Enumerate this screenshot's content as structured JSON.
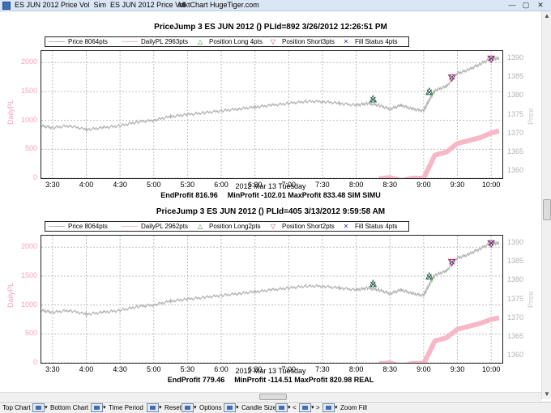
{
  "window": {
    "title": "ES JUN 2012 Price Vol  Sim  ES JUN 2012 Price Vol",
    "center_title": "MktChart HugeTiger.com",
    "minimize": "—",
    "maximize": "▢",
    "close": "✕"
  },
  "charts": [
    {
      "title": "PriceJump 3 ES JUN 2012 () PLId=892 3/26/2012 12:26:51 PM",
      "legend": [
        "Price 8064pts",
        "DailyPL 2963pts",
        "Position Long 4pts",
        "Position Short3pts",
        "Fill Status 4pts"
      ],
      "date_label": "2012 Mar 13 Tuesday",
      "end_profit": "EndProfit 816.96",
      "min_max": "MinProfit -102.01 MaxProfit 833.48 SIM SIMU"
    },
    {
      "title": "PriceJump 3 ES JUN 2012 () PLId=405 3/13/2012 9:59:58 AM",
      "legend": [
        "Price 8064pts",
        "DailyPL 2962pts",
        "Position Long2pts",
        "Position Short2pts",
        "Fill Status 4pts"
      ],
      "date_label": "2012 Mar 13 Tuesday",
      "end_profit": "EndProfit 779.46",
      "min_max": "MinProfit -114.51 MaxProfit 820.98 REAL"
    }
  ],
  "axes": {
    "left_label": "DailyPL",
    "right_label": "Price",
    "left_ticks": [
      "0",
      "500",
      "1000",
      "1500",
      "2000"
    ],
    "right_ticks": [
      "1360",
      "1365",
      "1370",
      "1375",
      "1380",
      "1385",
      "1390"
    ],
    "x_ticks": [
      "3:30",
      "4:00",
      "4:30",
      "5:00",
      "5:30",
      "6:00",
      "6:30",
      "7:00",
      "7:30",
      "8:00",
      "8:30",
      "9:00",
      "9:30",
      "10:00"
    ]
  },
  "chart_data": [
    {
      "type": "line",
      "x": [
        "3:20",
        "3:30",
        "3:45",
        "4:00",
        "4:15",
        "4:30",
        "4:45",
        "5:00",
        "5:15",
        "5:30",
        "5:45",
        "6:00",
        "6:15",
        "6:30",
        "6:45",
        "7:00",
        "7:15",
        "7:30",
        "7:45",
        "8:00",
        "8:10",
        "8:20",
        "8:30",
        "8:40",
        "8:50",
        "9:00",
        "9:05",
        "9:10",
        "9:20",
        "9:30",
        "9:40",
        "9:50",
        "10:00",
        "10:07"
      ],
      "series": [
        {
          "name": "Price 8064pts",
          "axis": "right",
          "values": [
            1372,
            1371.5,
            1372,
            1371,
            1371.5,
            1372,
            1373,
            1373.5,
            1374.5,
            1375,
            1375.5,
            1376,
            1376.5,
            1377,
            1377.5,
            1378,
            1378.5,
            1378.5,
            1378,
            1377.5,
            1378,
            1377.5,
            1376.5,
            1377.5,
            1376.5,
            1376,
            1379,
            1381.5,
            1382.5,
            1386,
            1387,
            1388.5,
            1390,
            1390
          ]
        },
        {
          "name": "DailyPL 2963pts",
          "axis": "left",
          "values": [
            null,
            null,
            null,
            null,
            null,
            null,
            null,
            null,
            null,
            null,
            null,
            null,
            null,
            null,
            null,
            null,
            null,
            null,
            null,
            null,
            null,
            -10,
            10,
            -40,
            0,
            0,
            200,
            400,
            450,
            600,
            650,
            700,
            780,
            817
          ]
        }
      ],
      "markers": {
        "long": [
          [
            "8:15",
            1379
          ],
          [
            "9:05",
            1381
          ]
        ],
        "short": [
          [
            "9:25",
            1385
          ],
          [
            "10:00",
            1390
          ]
        ],
        "fill": [
          [
            "8:15",
            1379
          ],
          [
            "9:05",
            1381
          ],
          [
            "9:25",
            1385
          ],
          [
            "10:00",
            1390
          ]
        ]
      },
      "ylim_left": [
        0,
        2200
      ],
      "ylim_right": [
        1358,
        1392
      ]
    },
    {
      "type": "line",
      "x": [
        "3:20",
        "3:30",
        "3:45",
        "4:00",
        "4:15",
        "4:30",
        "4:45",
        "5:00",
        "5:15",
        "5:30",
        "5:45",
        "6:00",
        "6:15",
        "6:30",
        "6:45",
        "7:00",
        "7:15",
        "7:30",
        "7:45",
        "8:00",
        "8:10",
        "8:20",
        "8:30",
        "8:40",
        "8:50",
        "9:00",
        "9:05",
        "9:10",
        "9:20",
        "9:30",
        "9:40",
        "9:50",
        "10:00",
        "10:07"
      ],
      "series": [
        {
          "name": "Price 8064pts",
          "axis": "right",
          "values": [
            1372,
            1371.5,
            1372,
            1371,
            1371.5,
            1372,
            1373,
            1373.5,
            1374.5,
            1375,
            1375.5,
            1376,
            1376.5,
            1377,
            1377.5,
            1378,
            1378.5,
            1378.5,
            1378,
            1377.5,
            1378,
            1377.5,
            1376.5,
            1377.5,
            1376.5,
            1376,
            1379,
            1381.5,
            1382.5,
            1386,
            1387,
            1388.5,
            1390,
            1390
          ]
        },
        {
          "name": "DailyPL 2962pts",
          "axis": "left",
          "values": [
            null,
            null,
            null,
            null,
            null,
            null,
            null,
            null,
            null,
            null,
            null,
            null,
            null,
            null,
            null,
            null,
            null,
            null,
            null,
            null,
            null,
            -20,
            0,
            -60,
            -10,
            -10,
            180,
            380,
            430,
            580,
            630,
            680,
            750,
            779
          ]
        }
      ],
      "markers": {
        "long": [
          [
            "8:15",
            1379
          ],
          [
            "9:05",
            1381
          ]
        ],
        "short": [
          [
            "9:25",
            1385
          ],
          [
            "10:00",
            1390
          ]
        ],
        "fill": [
          [
            "8:15",
            1379
          ],
          [
            "9:05",
            1381
          ],
          [
            "9:25",
            1385
          ],
          [
            "10:00",
            1390
          ]
        ]
      },
      "ylim_left": [
        0,
        2200
      ],
      "ylim_right": [
        1358,
        1392
      ]
    }
  ],
  "colors": {
    "price": "#b4b4b4",
    "pl": "#f7b7c6",
    "long": "#2a8a2a",
    "short": "#c0304a",
    "fill": "#3a3a8a",
    "grid": "#bdbdbd"
  },
  "toolbar": {
    "top_chart": "Top Chart",
    "bottom_chart": "Bottom Chart",
    "time_period": "Time Period",
    "reset": "Reset",
    "options": "Options",
    "candle_size": "Candle Size",
    "prev": "<",
    "next": ">",
    "zoom_fill": "Zoom Fill"
  }
}
